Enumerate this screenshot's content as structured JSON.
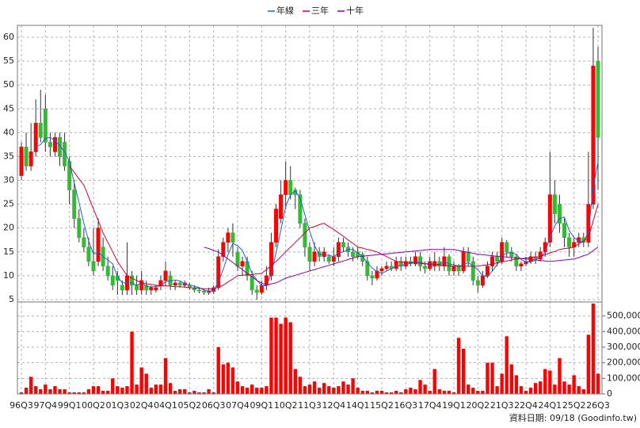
{
  "chart_data": {
    "type": "candlestick",
    "grid": true,
    "up_color": "#ff0000",
    "down_color": "#33bb33",
    "footer": "資料日期: 09/18 (Goodinfo.tw)",
    "categories": [
      "96Q3",
      null,
      null,
      null,
      null,
      "97Q4",
      null,
      null,
      null,
      null,
      "99Q1",
      null,
      null,
      null,
      null,
      "00Q2",
      null,
      null,
      null,
      null,
      "01Q3",
      null,
      null,
      null,
      null,
      "02Q4",
      null,
      null,
      null,
      null,
      "04Q1",
      null,
      null,
      null,
      null,
      "05Q2",
      null,
      null,
      null,
      null,
      "06Q3",
      null,
      null,
      null,
      null,
      "07Q4",
      null,
      null,
      null,
      null,
      "09Q1",
      null,
      null,
      null,
      null,
      "10Q2",
      null,
      null,
      null,
      null,
      "11Q3",
      null,
      null,
      null,
      null,
      "12Q4",
      null,
      null,
      null,
      null,
      "14Q1",
      null,
      null,
      null,
      null,
      "15Q2",
      null,
      null,
      null,
      null,
      "16Q3",
      null,
      null,
      null,
      null,
      "17Q4",
      null,
      null,
      null,
      null,
      "19Q1",
      null,
      null,
      null,
      null,
      "20Q2",
      null,
      null,
      null,
      null,
      "21Q3",
      null,
      null,
      null,
      null,
      "22Q4",
      null,
      null,
      null,
      null,
      "24Q1",
      null,
      null,
      null,
      null,
      "25Q2",
      null,
      null,
      null,
      null,
      "26Q3"
    ],
    "open": [
      31,
      37,
      33,
      36,
      42,
      45,
      38,
      36,
      39,
      38,
      34,
      28,
      22,
      18,
      16,
      13,
      13,
      16,
      12,
      10,
      10,
      8,
      7,
      10,
      8,
      7,
      8,
      7,
      7,
      8,
      9,
      10,
      8,
      8.5,
      8,
      8,
      7.5,
      7,
      6.8,
      6.5,
      6.7,
      7.5,
      14,
      17,
      19,
      15,
      12,
      13,
      10,
      7,
      6.5,
      8,
      10,
      17,
      22,
      27,
      30,
      28,
      27,
      21,
      16,
      13,
      15,
      14,
      14,
      13,
      14,
      17,
      16,
      15,
      15,
      14.5,
      13,
      10,
      9.5,
      11,
      11.5,
      12,
      11.5,
      13,
      12,
      13,
      12.5,
      14,
      12,
      11.5,
      12,
      13,
      12,
      14,
      11,
      12,
      11,
      15,
      13,
      9,
      8,
      10,
      12,
      14,
      13,
      17,
      15,
      14,
      12,
      12.5,
      13,
      14,
      13.5,
      15,
      17,
      27,
      25,
      21,
      18,
      16,
      17,
      18,
      17,
      25,
      55
    ],
    "high": [
      38,
      40,
      42,
      47,
      49,
      48,
      40,
      40,
      40,
      40,
      35,
      30,
      24,
      20,
      18,
      20,
      22,
      18,
      14,
      12,
      11,
      9,
      17,
      11,
      10,
      11,
      9,
      8,
      8,
      10,
      13,
      11,
      9,
      9,
      9,
      8.5,
      8,
      7.5,
      7.2,
      7.5,
      8,
      15.5,
      18,
      20,
      21,
      16,
      14,
      14,
      11,
      8,
      9,
      12,
      19,
      25,
      30,
      34,
      33,
      28.5,
      28,
      22,
      17,
      17,
      16,
      16,
      14.5,
      16,
      18,
      18,
      17,
      16,
      16,
      15,
      14,
      11,
      12,
      12,
      13,
      13,
      14,
      14,
      14,
      14,
      15,
      15,
      13,
      14,
      15,
      14,
      16,
      14.5,
      13,
      12.5,
      16,
      16,
      14,
      10,
      11,
      13,
      15,
      15,
      18,
      17.5,
      16,
      14.5,
      13,
      14,
      15,
      15,
      16,
      18,
      36,
      30,
      27,
      22,
      19,
      18,
      19,
      19,
      36,
      62,
      58
    ],
    "low": [
      30,
      32,
      32,
      35,
      38,
      36,
      35,
      35,
      33,
      32,
      25,
      20,
      17,
      15,
      12,
      10,
      12,
      11,
      9,
      7,
      6,
      6,
      6,
      6,
      6,
      6,
      6,
      6,
      6.5,
      7,
      8,
      7,
      7,
      7.5,
      7.5,
      7,
      6.5,
      6.3,
      6,
      6,
      6.2,
      7,
      13,
      15,
      14,
      11,
      10,
      9,
      6,
      5,
      6,
      7,
      9,
      16,
      21,
      24,
      26,
      24,
      20,
      14,
      11,
      12,
      13,
      13,
      12.5,
      12,
      13,
      15,
      14,
      13,
      13.5,
      12,
      9,
      8,
      9,
      10,
      11,
      11,
      11,
      11,
      11.5,
      12,
      12,
      11,
      10.5,
      11,
      11,
      11,
      11,
      10,
      10,
      10,
      10.5,
      12,
      8,
      6.5,
      7.5,
      9.5,
      11,
      12,
      12.5,
      14,
      13,
      11,
      11,
      12,
      12.5,
      12.5,
      13,
      14,
      16,
      21,
      19,
      16,
      14,
      14,
      16,
      16,
      16,
      24,
      28
    ],
    "close": [
      37,
      33,
      36,
      42,
      39,
      38,
      37,
      39,
      35,
      33,
      28,
      22,
      18,
      16,
      13,
      11,
      20,
      12,
      10,
      8,
      9,
      7,
      10,
      8,
      7,
      9,
      7,
      7.5,
      7.5,
      9,
      11,
      8,
      8.5,
      8,
      8.5,
      7.5,
      7,
      6.8,
      6.5,
      6.7,
      7.5,
      14,
      17,
      19,
      17,
      12,
      13,
      10,
      7,
      6.5,
      8,
      10,
      17,
      24,
      27,
      30,
      27,
      27,
      21,
      16,
      13,
      15,
      14,
      15,
      13,
      14,
      17,
      16,
      15,
      14,
      14,
      13,
      10,
      9.5,
      11,
      11.5,
      12,
      11.5,
      13,
      12,
      13,
      12.5,
      14,
      12,
      11.5,
      13,
      13,
      12,
      14,
      11,
      12,
      11,
      15,
      13,
      9,
      8,
      10,
      12,
      14,
      13,
      17,
      15,
      14,
      12,
      12.5,
      13,
      14,
      13.5,
      15,
      17,
      27,
      23,
      21,
      18,
      16,
      17,
      18,
      17,
      25,
      54,
      39
    ],
    "ylim": [
      4.5,
      62.5
    ],
    "yticks": [
      5,
      10,
      15,
      20,
      25,
      30,
      35,
      40,
      45,
      50,
      55,
      60
    ],
    "lines": [
      {
        "name": "年線",
        "color": "#1f5fd6",
        "values": [
          null,
          null,
          null,
          37,
          37.5,
          38.8,
          39,
          38.3,
          37.3,
          36,
          33.8,
          29.5,
          25.3,
          21,
          17.3,
          14.5,
          15,
          14,
          13.3,
          12.5,
          9.8,
          8.5,
          8.5,
          8.5,
          8,
          8.5,
          7.8,
          7.6,
          7.8,
          7.8,
          8.8,
          8.9,
          9.1,
          8.9,
          8.3,
          8.1,
          7.8,
          7.5,
          7,
          6.8,
          6.9,
          8.7,
          11.3,
          14.4,
          16.8,
          16.3,
          15.3,
          13,
          10.5,
          9.1,
          7.9,
          7.9,
          10.4,
          14.8,
          19.5,
          24.5,
          27,
          27.8,
          26.3,
          22.8,
          19.3,
          16.3,
          14.5,
          14.3,
          14.3,
          14,
          14.8,
          15,
          15.5,
          15.5,
          14.8,
          14,
          12.8,
          11.6,
          10.9,
          10.5,
          11,
          11.5,
          12,
          12.1,
          12.4,
          12.6,
          12.9,
          12.9,
          12.5,
          12.6,
          12.4,
          12.4,
          13,
          12.5,
          12.3,
          12,
          12.3,
          12.8,
          12,
          11.3,
          10,
          9.8,
          11,
          12.3,
          14,
          14.8,
          14.8,
          14.5,
          13.4,
          12.9,
          12.9,
          13.3,
          13.9,
          14.9,
          18.1,
          20.5,
          22,
          22.3,
          19.5,
          18,
          17.3,
          17,
          19.3,
          28.5,
          33.8
        ]
      },
      {
        "name": "三年",
        "color": "#cc0033",
        "values": [
          null,
          null,
          null,
          null,
          null,
          null,
          null,
          null,
          null,
          null,
          33,
          31.7,
          30.3,
          29,
          26.5,
          24,
          21.5,
          19,
          17,
          15,
          13,
          11.5,
          10,
          9.5,
          9,
          8.5,
          8.3,
          8.2,
          8,
          7.9,
          7.9,
          7.8,
          7.7,
          7.7,
          7.6,
          7.5,
          7.4,
          7.4,
          7.3,
          7.3,
          7.2,
          7.6,
          8,
          8.7,
          9.3,
          10,
          10.1,
          10.2,
          10.3,
          10.4,
          10.5,
          11.3,
          12.2,
          13,
          14,
          15,
          16,
          17,
          18,
          19,
          20,
          20.3,
          20.7,
          21,
          20.3,
          19.7,
          19,
          18.3,
          17.5,
          16.8,
          16,
          15.8,
          15.5,
          15.3,
          15,
          14.5,
          14,
          13.5,
          13,
          12.9,
          12.8,
          12.8,
          12.7,
          12.6,
          12.5,
          12.4,
          12.3,
          12.3,
          12.2,
          12.1,
          12,
          12,
          12,
          12,
          12,
          12,
          12.2,
          12.3,
          12.5,
          12.7,
          12.9,
          13.1,
          13.3,
          13.5,
          13.6,
          13.7,
          13.8,
          13.9,
          14,
          14.4,
          14.8,
          15.1,
          15.5,
          15.7,
          15.8,
          16,
          16.7,
          17.3,
          18,
          21.5,
          25
        ]
      },
      {
        "name": "十年",
        "color": "#8800aa",
        "values": [
          null,
          null,
          null,
          null,
          null,
          null,
          null,
          null,
          null,
          null,
          null,
          null,
          null,
          null,
          null,
          null,
          null,
          null,
          null,
          null,
          null,
          null,
          null,
          null,
          null,
          null,
          null,
          null,
          null,
          null,
          null,
          null,
          null,
          null,
          null,
          null,
          null,
          null,
          16,
          15.7,
          15.3,
          15,
          14.3,
          13.5,
          12.8,
          12,
          11.3,
          10.5,
          9.8,
          9,
          8.5,
          8,
          8.3,
          8.5,
          9,
          9.5,
          9.8,
          10.1,
          10.4,
          10.7,
          11,
          11.3,
          11.6,
          11.9,
          12.2,
          12.5,
          12.8,
          13.1,
          13.4,
          13.7,
          14,
          14.1,
          14.2,
          14.3,
          14.4,
          14.5,
          14.6,
          14.7,
          14.8,
          14.9,
          15,
          15.1,
          15.2,
          15.3,
          15.4,
          15.5,
          15.5,
          15.5,
          15.5,
          15.5,
          15.5,
          15.3,
          15.1,
          14.9,
          14.7,
          14.5,
          14.4,
          14.3,
          14.2,
          14.1,
          14,
          13.9,
          13.8,
          13.7,
          13.6,
          13.5,
          13.4,
          13.3,
          13.2,
          13.1,
          13,
          13.1,
          13.2,
          13.3,
          13.4,
          13.5,
          13.8,
          14.2,
          14.5,
          15.3,
          16
        ]
      }
    ],
    "volume": {
      "type": "bar",
      "color": "#ff0000",
      "values": [
        10000,
        40000,
        110000,
        50000,
        30000,
        60000,
        30000,
        50000,
        30000,
        30000,
        10000,
        10000,
        10000,
        10000,
        30000,
        50000,
        50000,
        20000,
        20000,
        100000,
        50000,
        40000,
        50000,
        400000,
        60000,
        170000,
        130000,
        40000,
        60000,
        60000,
        230000,
        70000,
        20000,
        30000,
        30000,
        10000,
        20000,
        10000,
        10000,
        30000,
        10000,
        300000,
        190000,
        200000,
        170000,
        80000,
        50000,
        40000,
        60000,
        40000,
        40000,
        50000,
        490000,
        490000,
        450000,
        490000,
        460000,
        160000,
        110000,
        50000,
        60000,
        80000,
        40000,
        70000,
        50000,
        40000,
        50000,
        80000,
        60000,
        100000,
        40000,
        20000,
        20000,
        10000,
        20000,
        20000,
        10000,
        10000,
        20000,
        10000,
        30000,
        40000,
        30000,
        90000,
        60000,
        20000,
        160000,
        30000,
        20000,
        20000,
        10000,
        360000,
        290000,
        60000,
        40000,
        20000,
        20000,
        200000,
        200000,
        50000,
        130000,
        370000,
        190000,
        120000,
        50000,
        20000,
        40000,
        70000,
        80000,
        160000,
        150000,
        60000,
        230000,
        80000,
        60000,
        120000,
        50000,
        30000,
        380000,
        580000,
        130000
      ],
      "ylim": [
        0,
        590000
      ],
      "yticks": [
        0,
        {
          "value": 100000,
          "label": "100,000"
        },
        {
          "value": 200000,
          "label": "200,000"
        },
        {
          "value": 300000,
          "label": "300,000"
        },
        {
          "value": 400000,
          "label": "400,000"
        },
        {
          "value": 500000,
          "label": "500,000"
        }
      ]
    }
  }
}
